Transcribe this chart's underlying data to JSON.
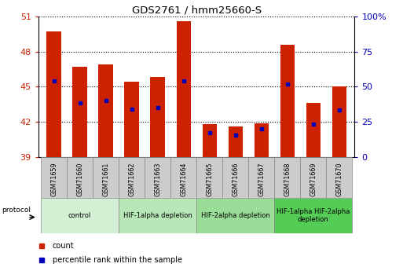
{
  "title": "GDS2761 / hmm25660-S",
  "samples": [
    "GSM71659",
    "GSM71660",
    "GSM71661",
    "GSM71662",
    "GSM71663",
    "GSM71664",
    "GSM71665",
    "GSM71666",
    "GSM71667",
    "GSM71668",
    "GSM71669",
    "GSM71670"
  ],
  "bar_tops": [
    49.7,
    46.7,
    46.9,
    45.4,
    45.8,
    50.6,
    41.8,
    41.6,
    41.9,
    48.6,
    43.6,
    45.0
  ],
  "bar_bottom": 39.0,
  "percentile_values": [
    45.5,
    43.6,
    43.8,
    43.1,
    43.2,
    45.5,
    41.1,
    40.9,
    41.4,
    45.2,
    41.8,
    43.0
  ],
  "ylim": [
    39,
    51
  ],
  "yticks_left": [
    39,
    42,
    45,
    48,
    51
  ],
  "right_tick_positions": [
    39,
    42,
    45,
    48,
    51
  ],
  "right_tick_labels": [
    "0",
    "25",
    "50",
    "75",
    "100%"
  ],
  "bar_color": "#cc2200",
  "percentile_color": "#0000bb",
  "bar_width": 0.55,
  "groups": [
    {
      "label": "control",
      "start": 0,
      "end": 3,
      "color": "#d4f0d4"
    },
    {
      "label": "HIF-1alpha depletion",
      "start": 3,
      "end": 6,
      "color": "#b8e8b8"
    },
    {
      "label": "HIF-2alpha depletion",
      "start": 6,
      "end": 9,
      "color": "#99dd99"
    },
    {
      "label": "HIF-1alpha HIF-2alpha\ndepletion",
      "start": 9,
      "end": 12,
      "color": "#55cc55"
    }
  ],
  "grid_color": "black",
  "left_tick_color": "#cc2200",
  "right_tick_color": "#0000bb",
  "sample_box_color": "#cccccc",
  "protocol_label": "protocol"
}
